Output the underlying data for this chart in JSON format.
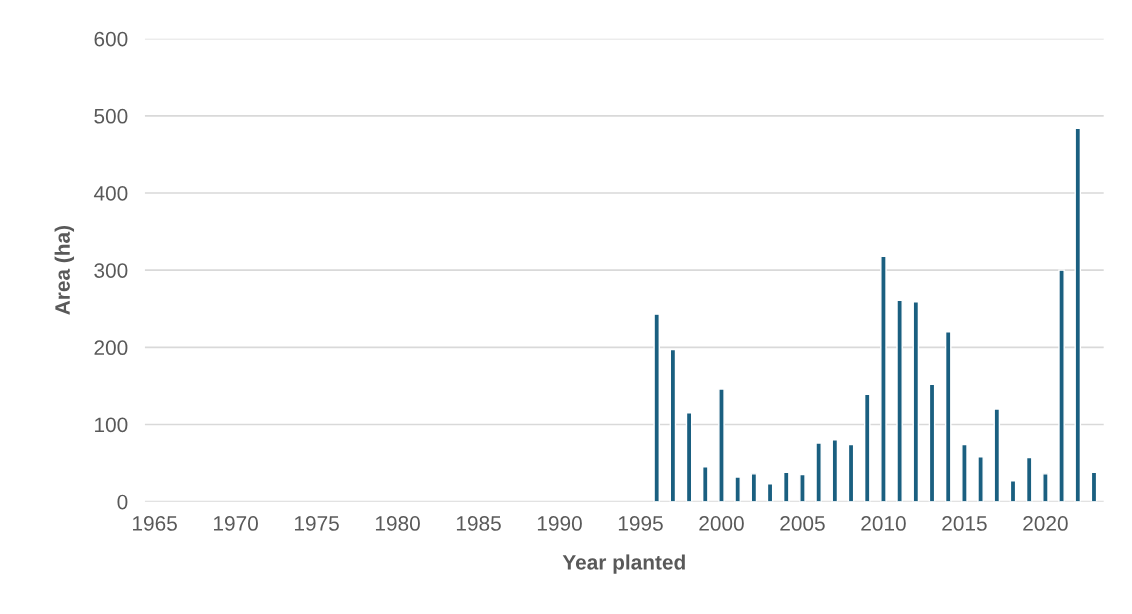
{
  "chart_data": {
    "type": "bar",
    "xlabel": "Year planted",
    "ylabel": "Area (ha)",
    "categories": [
      "1965",
      null,
      null,
      null,
      null,
      "1970",
      null,
      null,
      null,
      null,
      "1975",
      null,
      null,
      null,
      null,
      "1980",
      null,
      null,
      null,
      null,
      "1985",
      null,
      null,
      null,
      null,
      "1990",
      null,
      null,
      null,
      null,
      "1995",
      null,
      null,
      null,
      null,
      "2000",
      null,
      null,
      null,
      null,
      "2005",
      null,
      null,
      null,
      null,
      "2010",
      null,
      null,
      null,
      null,
      "2015",
      null,
      null,
      null,
      null,
      "2020",
      null,
      null,
      null
    ],
    "values": [
      null,
      null,
      null,
      null,
      null,
      null,
      null,
      null,
      null,
      null,
      null,
      null,
      null,
      null,
      null,
      null,
      null,
      null,
      null,
      null,
      null,
      null,
      null,
      null,
      null,
      null,
      null,
      null,
      null,
      null,
      null,
      243,
      197,
      115,
      45,
      146,
      32,
      36,
      23,
      38,
      35,
      76,
      80,
      74,
      139,
      318,
      261,
      259,
      152,
      220,
      74,
      58,
      120,
      27,
      57,
      36,
      300,
      484,
      38
    ],
    "color": "#1a5f80",
    "ylim": [
      0,
      600
    ],
    "yticks": [
      0,
      100,
      200,
      300,
      400,
      500,
      600
    ],
    "grid": "y"
  }
}
